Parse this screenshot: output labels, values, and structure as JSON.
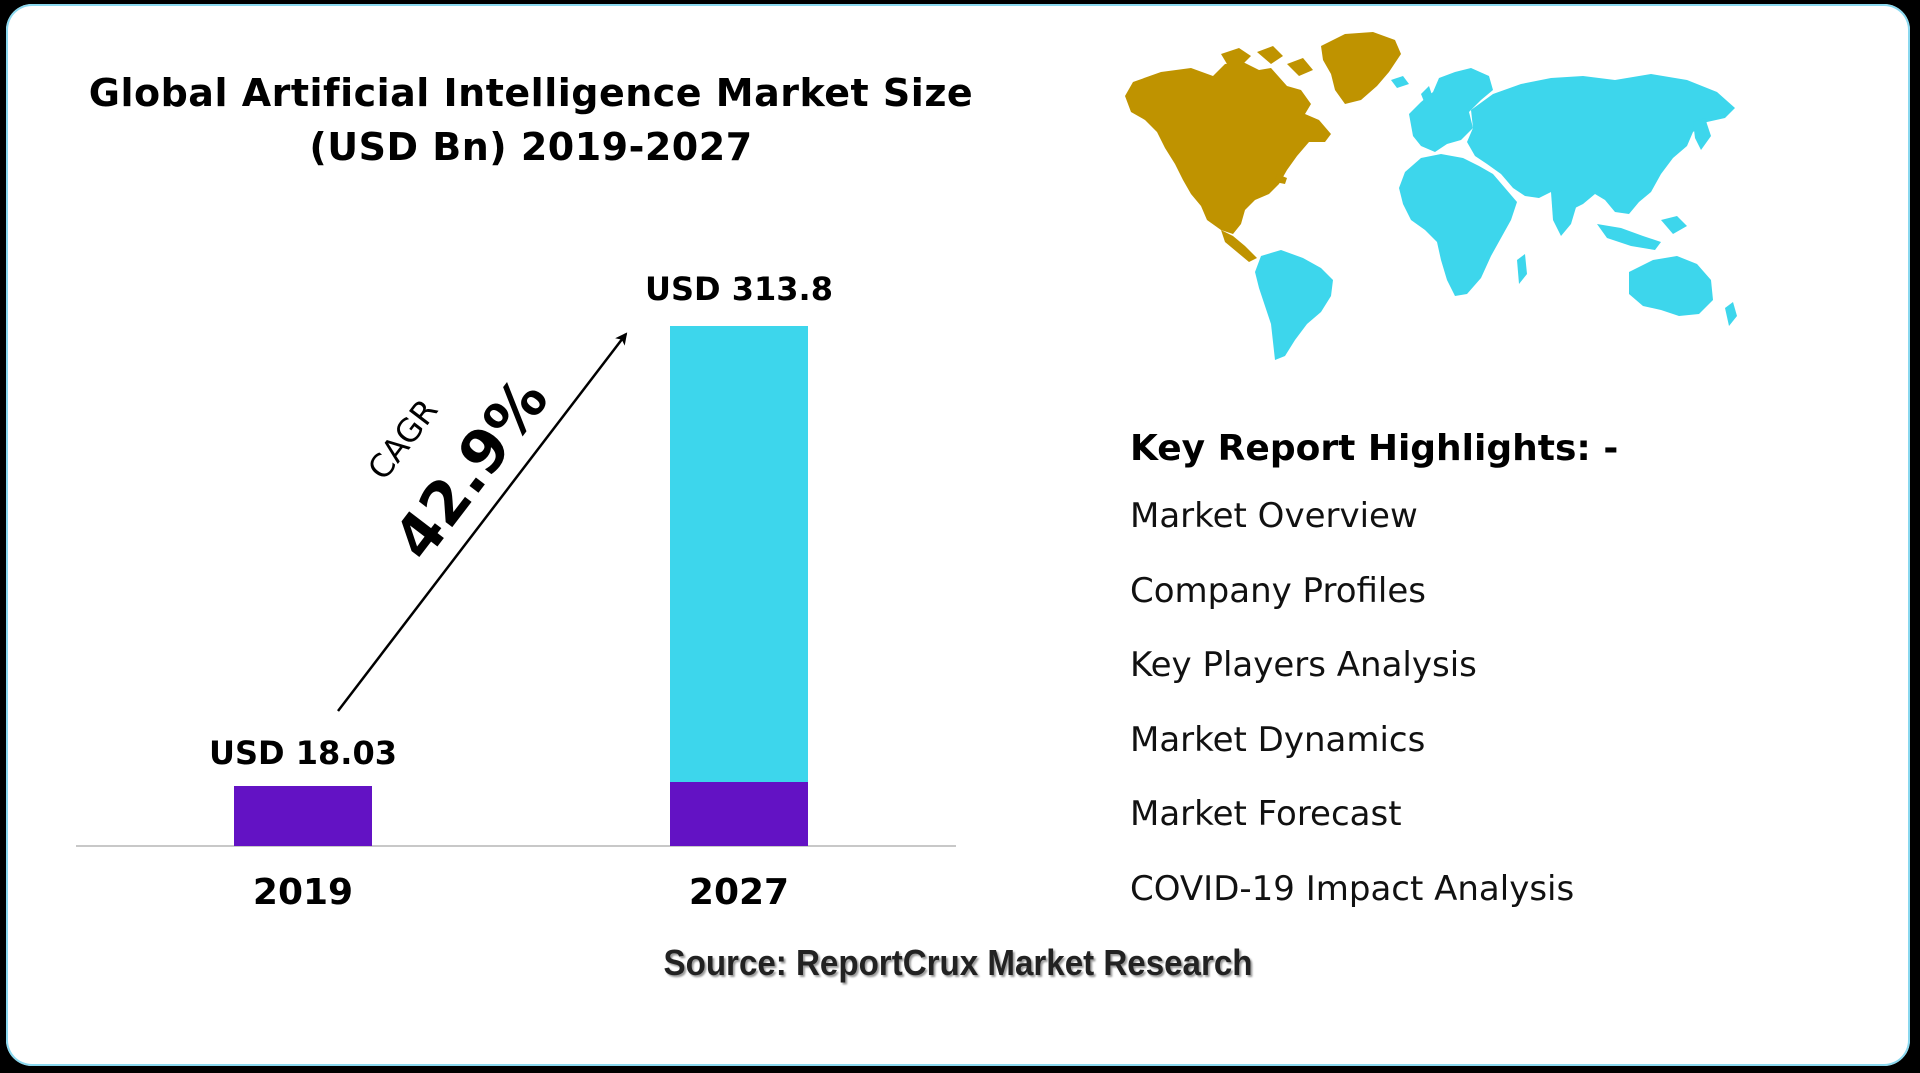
{
  "chart_data": {
    "type": "bar",
    "title": "Global Artificial Intelligence Market Size (USD Bn) 2019-2027",
    "categories": [
      "2019",
      "2027"
    ],
    "values": [
      18.03,
      313.8
    ],
    "value_labels": [
      "USD 18.03",
      "USD 313.8"
    ],
    "base_value": 18.03,
    "xlabel": "",
    "ylabel": "",
    "ylim": [
      0,
      313.8
    ],
    "grid": false,
    "legend": "none",
    "annotation": {
      "label": "CAGR",
      "value": "42.9%"
    },
    "colors": {
      "base": "#6312c4",
      "growth": "#3dd6ec"
    }
  },
  "map": {
    "icon": "world-map-icon",
    "colors": {
      "north_america": "#bf9300",
      "rest_of_world": "#3dd6ec"
    }
  },
  "highlights": {
    "heading": "Key Report Highlights: -",
    "items": [
      "Market Overview",
      "Company Profiles",
      "Key Players Analysis",
      "Market Dynamics",
      "Market Forecast",
      "COVID-19 Impact Analysis"
    ]
  },
  "source": "Source: ReportCrux Market Research"
}
